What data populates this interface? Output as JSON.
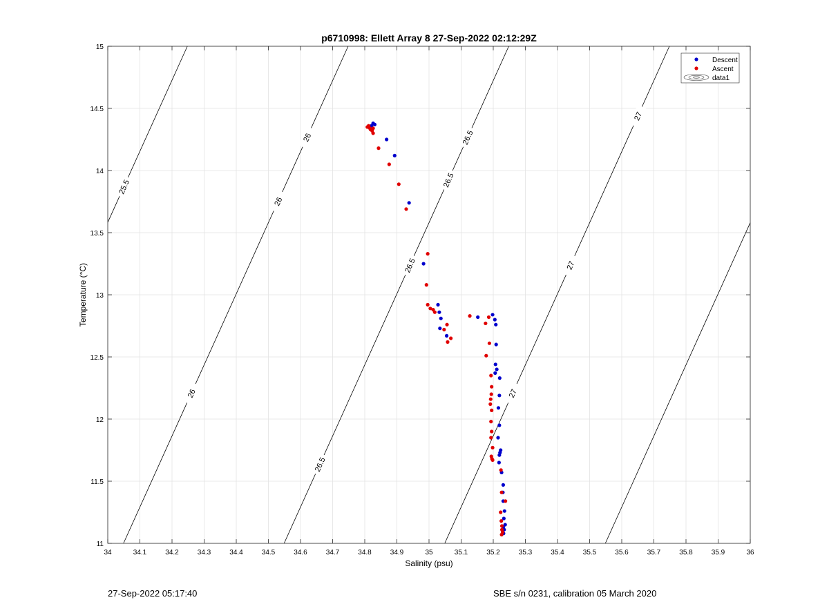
{
  "chart_data": {
    "type": "scatter",
    "title": "p6710998: Ellett Array 8 27-Sep-2022 02:12:29Z",
    "xlabel": "Salinity (psu)",
    "ylabel": "Temperature (°C)",
    "xlim": [
      34,
      36
    ],
    "ylim": [
      11,
      15
    ],
    "x_ticks": [
      34,
      34.1,
      34.2,
      34.3,
      34.4,
      34.5,
      34.6,
      34.7,
      34.8,
      34.9,
      35,
      35.1,
      35.2,
      35.3,
      35.4,
      35.5,
      35.6,
      35.7,
      35.8,
      35.9,
      36
    ],
    "y_ticks": [
      11,
      11.5,
      12,
      12.5,
      13,
      13.5,
      14,
      14.5,
      15
    ],
    "grid": true,
    "legend_position": "top-right",
    "legend": [
      {
        "label": "Descent",
        "marker": "dot",
        "color": "#0000cc"
      },
      {
        "label": "Ascent",
        "marker": "dot",
        "color": "#e00000"
      },
      {
        "label": "data1",
        "marker": "contour"
      }
    ],
    "series": [
      {
        "name": "Descent",
        "color": "#0000cc",
        "points": [
          [
            34.826,
            14.38
          ],
          [
            34.831,
            14.37
          ],
          [
            34.821,
            14.36
          ],
          [
            34.868,
            14.25
          ],
          [
            34.893,
            14.12
          ],
          [
            34.938,
            13.74
          ],
          [
            34.983,
            13.25
          ],
          [
            35.028,
            12.92
          ],
          [
            35.032,
            12.86
          ],
          [
            35.037,
            12.81
          ],
          [
            35.034,
            12.73
          ],
          [
            35.055,
            12.67
          ],
          [
            35.152,
            12.82
          ],
          [
            35.198,
            12.84
          ],
          [
            35.205,
            12.8
          ],
          [
            35.208,
            12.76
          ],
          [
            35.209,
            12.6
          ],
          [
            35.207,
            12.44
          ],
          [
            35.211,
            12.4
          ],
          [
            35.206,
            12.37
          ],
          [
            35.22,
            12.33
          ],
          [
            35.219,
            12.19
          ],
          [
            35.216,
            12.09
          ],
          [
            35.219,
            11.95
          ],
          [
            35.215,
            11.85
          ],
          [
            35.223,
            11.75
          ],
          [
            35.221,
            11.73
          ],
          [
            35.219,
            11.71
          ],
          [
            35.218,
            11.65
          ],
          [
            35.226,
            11.57
          ],
          [
            35.231,
            11.47
          ],
          [
            35.23,
            11.41
          ],
          [
            35.231,
            11.34
          ],
          [
            35.235,
            11.26
          ],
          [
            35.233,
            11.2
          ],
          [
            35.237,
            11.15
          ],
          [
            35.231,
            11.13
          ],
          [
            35.234,
            11.11
          ],
          [
            35.229,
            11.09
          ],
          [
            35.232,
            11.08
          ]
        ]
      },
      {
        "name": "Ascent",
        "color": "#e00000",
        "points": [
          [
            34.808,
            14.35
          ],
          [
            34.812,
            14.36
          ],
          [
            34.816,
            14.34
          ],
          [
            34.818,
            14.33
          ],
          [
            34.823,
            14.32
          ],
          [
            34.826,
            14.3
          ],
          [
            34.826,
            14.34
          ],
          [
            34.843,
            14.18
          ],
          [
            34.876,
            14.05
          ],
          [
            34.906,
            13.89
          ],
          [
            34.929,
            13.69
          ],
          [
            34.992,
            13.08
          ],
          [
            34.996,
            13.33
          ],
          [
            34.996,
            12.92
          ],
          [
            35.004,
            12.89
          ],
          [
            35.013,
            12.88
          ],
          [
            35.018,
            12.86
          ],
          [
            35.047,
            12.72
          ],
          [
            35.056,
            12.76
          ],
          [
            35.068,
            12.65
          ],
          [
            35.058,
            12.62
          ],
          [
            35.127,
            12.83
          ],
          [
            35.176,
            12.77
          ],
          [
            35.186,
            12.82
          ],
          [
            35.188,
            12.61
          ],
          [
            35.178,
            12.51
          ],
          [
            35.193,
            12.35
          ],
          [
            35.195,
            12.26
          ],
          [
            35.194,
            12.2
          ],
          [
            35.192,
            12.16
          ],
          [
            35.191,
            12.12
          ],
          [
            35.195,
            12.07
          ],
          [
            35.193,
            11.98
          ],
          [
            35.195,
            11.9
          ],
          [
            35.193,
            11.85
          ],
          [
            35.198,
            11.77
          ],
          [
            35.194,
            11.7
          ],
          [
            35.196,
            11.68
          ],
          [
            35.198,
            11.67
          ],
          [
            35.224,
            11.59
          ],
          [
            35.226,
            11.41
          ],
          [
            35.238,
            11.34
          ],
          [
            35.223,
            11.25
          ],
          [
            35.225,
            11.18
          ],
          [
            35.227,
            11.14
          ],
          [
            35.227,
            11.11
          ],
          [
            35.229,
            11.09
          ],
          [
            35.226,
            11.07
          ]
        ]
      }
    ],
    "contour_levels": [
      {
        "level": 25.5,
        "labels": [
          "25.5",
          "25.5"
        ]
      },
      {
        "level": 26,
        "labels": [
          "26",
          "26",
          "26",
          "26",
          "26"
        ]
      },
      {
        "level": 26.5,
        "labels": [
          "26.5",
          "26.5",
          "26.5",
          "26.5",
          "26.5",
          "26.5"
        ]
      },
      {
        "level": 27,
        "labels": [
          "27",
          "27",
          "27",
          "27",
          "27"
        ]
      }
    ]
  },
  "footer": {
    "left": "27-Sep-2022 05:17:40",
    "right": "SBE s/n 0231, calibration 05 March 2020"
  }
}
